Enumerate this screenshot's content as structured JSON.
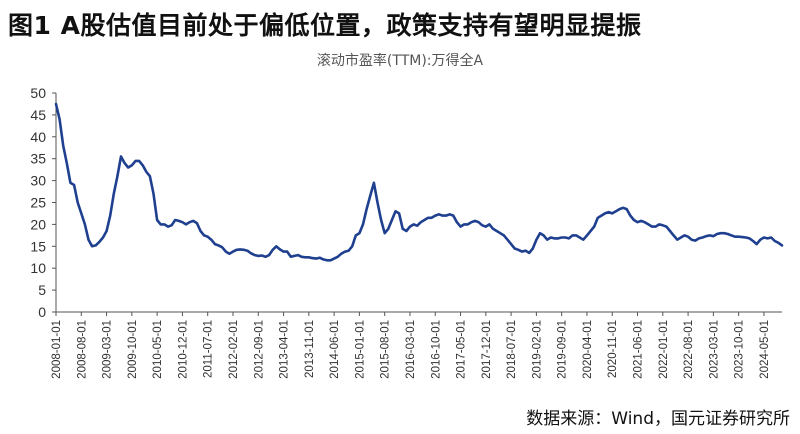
{
  "figure": {
    "heading": "图1  A股估值目前处于偏低位置，政策支持有望明显提振",
    "source": "数据来源：Wind，国元证券研究所"
  },
  "chart_data": {
    "type": "line",
    "title": "滚动市盈率(TTM):万得全A",
    "xlabel": "",
    "ylabel": "",
    "ylim": [
      0,
      50
    ],
    "yticks": [
      0,
      5,
      10,
      15,
      20,
      25,
      30,
      35,
      40,
      45,
      50
    ],
    "grid": false,
    "line_color": "#1f3f8f",
    "x_tick_labels": [
      "2008-01-01",
      "2008-08-01",
      "2009-03-01",
      "2009-10-01",
      "2010-05-01",
      "2010-12-01",
      "2011-07-01",
      "2012-02-01",
      "2012-09-01",
      "2013-04-01",
      "2013-11-01",
      "2014-06-01",
      "2015-01-01",
      "2015-08-01",
      "2016-03-01",
      "2016-10-01",
      "2017-05-01",
      "2017-12-01",
      "2018-07-01",
      "2019-02-01",
      "2019-09-01",
      "2020-04-01",
      "2020-11-01",
      "2021-06-01",
      "2022-01-01",
      "2022-08-01",
      "2023-03-01",
      "2023-10-01",
      "2024-05-01"
    ],
    "series": [
      {
        "values": [
          [
            "2008-01",
            47.5
          ],
          [
            "2008-02",
            44
          ],
          [
            "2008-03",
            38
          ],
          [
            "2008-04",
            34
          ],
          [
            "2008-05",
            29.5
          ],
          [
            "2008-06",
            29
          ],
          [
            "2008-07",
            25
          ],
          [
            "2008-08",
            22.5
          ],
          [
            "2008-09",
            20
          ],
          [
            "2008-10",
            16.5
          ],
          [
            "2008-11",
            15
          ],
          [
            "2008-12",
            15.2
          ],
          [
            "2009-01",
            16
          ],
          [
            "2009-02",
            17
          ],
          [
            "2009-03",
            18.5
          ],
          [
            "2009-04",
            22
          ],
          [
            "2009-05",
            27
          ],
          [
            "2009-06",
            31
          ],
          [
            "2009-07",
            35.5
          ],
          [
            "2009-08",
            34
          ],
          [
            "2009-09",
            33
          ],
          [
            "2009-10",
            33.5
          ],
          [
            "2009-11",
            34.5
          ],
          [
            "2009-12",
            34.5
          ],
          [
            "2010-01",
            33.5
          ],
          [
            "2010-02",
            32
          ],
          [
            "2010-03",
            31
          ],
          [
            "2010-04",
            27
          ],
          [
            "2010-05",
            21
          ],
          [
            "2010-06",
            20
          ],
          [
            "2010-07",
            20
          ],
          [
            "2010-08",
            19.5
          ],
          [
            "2010-09",
            19.8
          ],
          [
            "2010-10",
            21
          ],
          [
            "2010-11",
            20.8
          ],
          [
            "2010-12",
            20.5
          ],
          [
            "2011-01",
            20
          ],
          [
            "2011-02",
            20.5
          ],
          [
            "2011-03",
            20.8
          ],
          [
            "2011-04",
            20.3
          ],
          [
            "2011-05",
            18.5
          ],
          [
            "2011-06",
            17.5
          ],
          [
            "2011-07",
            17.2
          ],
          [
            "2011-08",
            16.5
          ],
          [
            "2011-09",
            15.5
          ],
          [
            "2011-10",
            15.2
          ],
          [
            "2011-11",
            14.8
          ],
          [
            "2011-12",
            13.8
          ],
          [
            "2012-01",
            13.3
          ],
          [
            "2012-02",
            13.8
          ],
          [
            "2012-03",
            14.2
          ],
          [
            "2012-04",
            14.3
          ],
          [
            "2012-05",
            14.2
          ],
          [
            "2012-06",
            14
          ],
          [
            "2012-07",
            13.4
          ],
          [
            "2012-08",
            13
          ],
          [
            "2012-09",
            12.8
          ],
          [
            "2012-10",
            12.9
          ],
          [
            "2012-11",
            12.6
          ],
          [
            "2012-12",
            13
          ],
          [
            "2013-01",
            14.2
          ],
          [
            "2013-02",
            15
          ],
          [
            "2013-03",
            14.3
          ],
          [
            "2013-04",
            13.8
          ],
          [
            "2013-05",
            13.8
          ],
          [
            "2013-06",
            12.6
          ],
          [
            "2013-07",
            12.8
          ],
          [
            "2013-08",
            13
          ],
          [
            "2013-09",
            12.6
          ],
          [
            "2013-10",
            12.5
          ],
          [
            "2013-11",
            12.5
          ],
          [
            "2013-12",
            12.3
          ],
          [
            "2014-01",
            12.2
          ],
          [
            "2014-02",
            12.4
          ],
          [
            "2014-03",
            12
          ],
          [
            "2014-04",
            11.8
          ],
          [
            "2014-05",
            11.8
          ],
          [
            "2014-06",
            12.2
          ],
          [
            "2014-07",
            12.6
          ],
          [
            "2014-08",
            13.3
          ],
          [
            "2014-09",
            13.8
          ],
          [
            "2014-10",
            14
          ],
          [
            "2014-11",
            15
          ],
          [
            "2014-12",
            17.5
          ],
          [
            "2015-01",
            18
          ],
          [
            "2015-02",
            20
          ],
          [
            "2015-03",
            23.5
          ],
          [
            "2015-04",
            26.5
          ],
          [
            "2015-05",
            29.5
          ],
          [
            "2015-06",
            25
          ],
          [
            "2015-07",
            21
          ],
          [
            "2015-08",
            18
          ],
          [
            "2015-09",
            19
          ],
          [
            "2015-10",
            21
          ],
          [
            "2015-11",
            23
          ],
          [
            "2015-12",
            22.5
          ],
          [
            "2016-01",
            19
          ],
          [
            "2016-02",
            18.5
          ],
          [
            "2016-03",
            19.5
          ],
          [
            "2016-04",
            20
          ],
          [
            "2016-05",
            19.7
          ],
          [
            "2016-06",
            20.5
          ],
          [
            "2016-07",
            21
          ],
          [
            "2016-08",
            21.5
          ],
          [
            "2016-09",
            21.5
          ],
          [
            "2016-10",
            22
          ],
          [
            "2016-11",
            22.3
          ],
          [
            "2016-12",
            22
          ],
          [
            "2017-01",
            22
          ],
          [
            "2017-02",
            22.3
          ],
          [
            "2017-03",
            22
          ],
          [
            "2017-04",
            20.5
          ],
          [
            "2017-05",
            19.5
          ],
          [
            "2017-06",
            20
          ],
          [
            "2017-07",
            20
          ],
          [
            "2017-08",
            20.5
          ],
          [
            "2017-09",
            20.8
          ],
          [
            "2017-10",
            20.5
          ],
          [
            "2017-11",
            19.8
          ],
          [
            "2017-12",
            19.5
          ],
          [
            "2018-01",
            20
          ],
          [
            "2018-02",
            19
          ],
          [
            "2018-03",
            18.5
          ],
          [
            "2018-04",
            18
          ],
          [
            "2018-05",
            17.5
          ],
          [
            "2018-06",
            16.5
          ],
          [
            "2018-07",
            15.5
          ],
          [
            "2018-08",
            14.5
          ],
          [
            "2018-09",
            14.2
          ],
          [
            "2018-10",
            13.8
          ],
          [
            "2018-11",
            14
          ],
          [
            "2018-12",
            13.5
          ],
          [
            "2019-01",
            14.5
          ],
          [
            "2019-02",
            16.5
          ],
          [
            "2019-03",
            18
          ],
          [
            "2019-04",
            17.5
          ],
          [
            "2019-05",
            16.5
          ],
          [
            "2019-06",
            17
          ],
          [
            "2019-07",
            16.8
          ],
          [
            "2019-08",
            16.8
          ],
          [
            "2019-09",
            17
          ],
          [
            "2019-10",
            17
          ],
          [
            "2019-11",
            16.8
          ],
          [
            "2019-12",
            17.5
          ],
          [
            "2020-01",
            17.5
          ],
          [
            "2020-02",
            17
          ],
          [
            "2020-03",
            16.5
          ],
          [
            "2020-04",
            17.5
          ],
          [
            "2020-05",
            18.5
          ],
          [
            "2020-06",
            19.5
          ],
          [
            "2020-07",
            21.5
          ],
          [
            "2020-08",
            22
          ],
          [
            "2020-09",
            22.5
          ],
          [
            "2020-10",
            22.8
          ],
          [
            "2020-11",
            22.5
          ],
          [
            "2020-12",
            23
          ],
          [
            "2021-01",
            23.5
          ],
          [
            "2021-02",
            23.8
          ],
          [
            "2021-03",
            23.5
          ],
          [
            "2021-04",
            22
          ],
          [
            "2021-05",
            21
          ],
          [
            "2021-06",
            20.5
          ],
          [
            "2021-07",
            20.8
          ],
          [
            "2021-08",
            20.5
          ],
          [
            "2021-09",
            20
          ],
          [
            "2021-10",
            19.5
          ],
          [
            "2021-11",
            19.5
          ],
          [
            "2021-12",
            20
          ],
          [
            "2022-01",
            19.8
          ],
          [
            "2022-02",
            19.5
          ],
          [
            "2022-03",
            18.5
          ],
          [
            "2022-04",
            17.5
          ],
          [
            "2022-05",
            16.5
          ],
          [
            "2022-06",
            17
          ],
          [
            "2022-07",
            17.5
          ],
          [
            "2022-08",
            17.2
          ],
          [
            "2022-09",
            16.5
          ],
          [
            "2022-10",
            16.3
          ],
          [
            "2022-11",
            16.8
          ],
          [
            "2022-12",
            17
          ],
          [
            "2023-01",
            17.3
          ],
          [
            "2023-02",
            17.5
          ],
          [
            "2023-03",
            17.3
          ],
          [
            "2023-04",
            17.8
          ],
          [
            "2023-05",
            18
          ],
          [
            "2023-06",
            18
          ],
          [
            "2023-07",
            17.8
          ],
          [
            "2023-08",
            17.5
          ],
          [
            "2023-09",
            17.2
          ],
          [
            "2023-10",
            17.2
          ],
          [
            "2023-11",
            17.1
          ],
          [
            "2023-12",
            17
          ],
          [
            "2024-01",
            16.8
          ],
          [
            "2024-02",
            16.2
          ],
          [
            "2024-03",
            15.5
          ],
          [
            "2024-04",
            16.5
          ],
          [
            "2024-05",
            17
          ],
          [
            "2024-06",
            16.8
          ],
          [
            "2024-07",
            17
          ],
          [
            "2024-08",
            16.2
          ],
          [
            "2024-09",
            15.8
          ],
          [
            "2024-10",
            15.2
          ]
        ]
      }
    ]
  }
}
